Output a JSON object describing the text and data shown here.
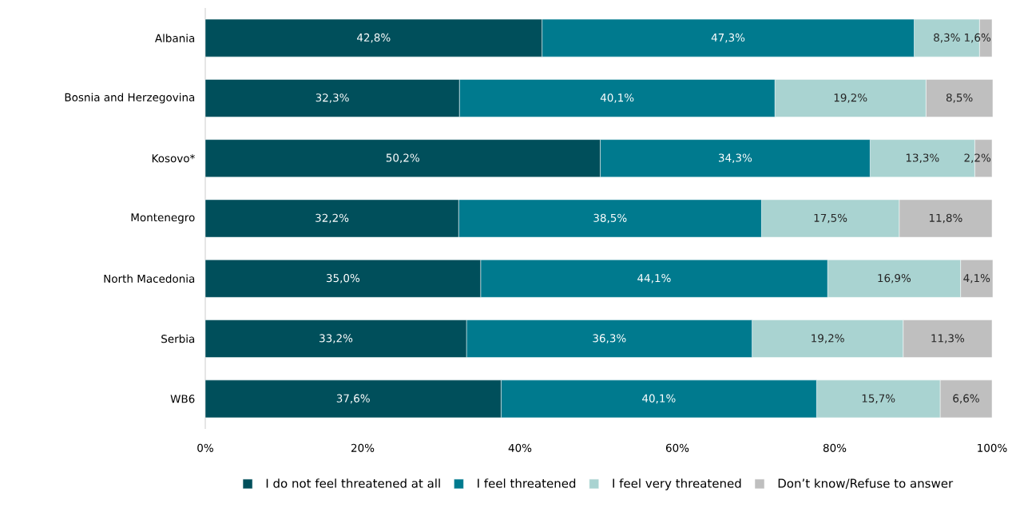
{
  "chart_data": {
    "type": "bar",
    "orientation": "horizontal",
    "stacked": true,
    "categories": [
      "Albania",
      "Bosnia and Herzegovina",
      "Kosovo*",
      "Montenegro",
      "North Macedonia",
      "Serbia",
      "WB6"
    ],
    "series": [
      {
        "name": "I do not feel threatened at all",
        "color": "#004f5b",
        "values": [
          42.8,
          32.3,
          50.2,
          32.2,
          35.0,
          33.2,
          37.6
        ],
        "value_labels": [
          "42,8%",
          "32,3%",
          "50,2%",
          "32,2%",
          "35,0%",
          "33,2%",
          "37,6%"
        ]
      },
      {
        "name": "I feel threatened",
        "color": "#007a8e",
        "values": [
          47.3,
          40.1,
          34.3,
          38.5,
          44.1,
          36.3,
          40.1
        ],
        "value_labels": [
          "47,3%",
          "40,1%",
          "34,3%",
          "38,5%",
          "44,1%",
          "36,3%",
          "40,1%"
        ]
      },
      {
        "name": "I feel very threatened",
        "color": "#a9d3d1",
        "values": [
          8.3,
          19.2,
          13.3,
          17.5,
          16.9,
          19.2,
          15.7
        ],
        "value_labels": [
          "8,3%",
          "19,2%",
          "13,3%",
          "17,5%",
          "16,9%",
          "19,2%",
          "15,7%"
        ]
      },
      {
        "name": "Don’t know/Refuse to answer",
        "color": "#bfbfbf",
        "values": [
          1.6,
          8.5,
          2.2,
          11.8,
          4.1,
          11.3,
          6.6
        ],
        "value_labels": [
          "1,6%",
          "8,5%",
          "2,2%",
          "11,8%",
          "4,1%",
          "11,3%",
          "6,6%"
        ]
      }
    ],
    "xlim": [
      0,
      100
    ],
    "xticks": [
      {
        "value": 0,
        "label": "0%"
      },
      {
        "value": 20,
        "label": "20%"
      },
      {
        "value": 40,
        "label": "40%"
      },
      {
        "value": 60,
        "label": "60%"
      },
      {
        "value": 80,
        "label": "80%"
      },
      {
        "value": 100,
        "label": "100%"
      }
    ],
    "legend": "bottom",
    "grid": false
  }
}
